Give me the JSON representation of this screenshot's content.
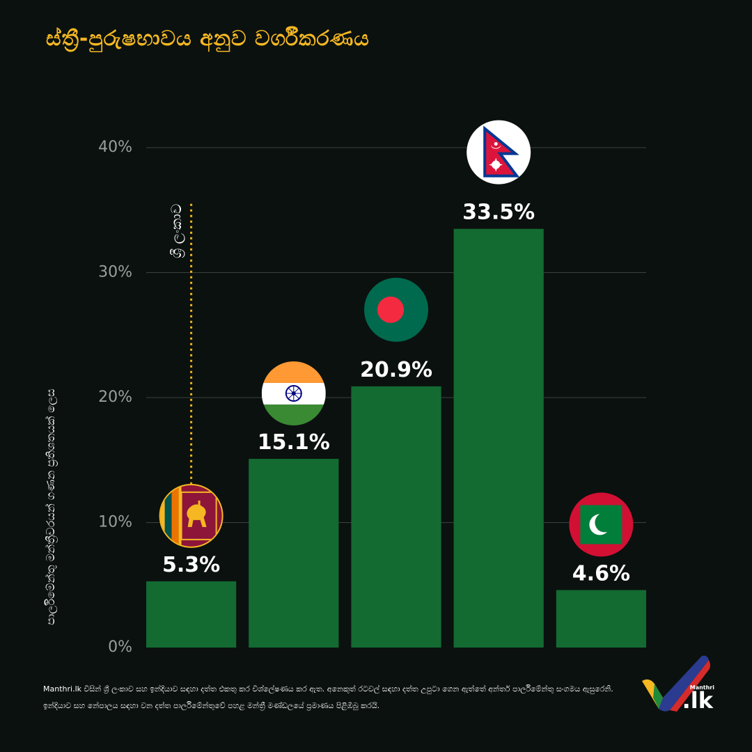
{
  "title": "ස්ත්‍රී-පුරුෂභාවය අනුව වර්ගීකරණය",
  "colors": {
    "background": "#0b110f",
    "title": "#f5b822",
    "bar": "#136b32",
    "grid": "#3a4240",
    "marker": "#f5b822",
    "tick": "#9aa09e"
  },
  "chart_data": {
    "type": "bar",
    "title": "ස්ත්‍රී-පුරුෂභාවය අනුව වර්ගීකරණය",
    "ylabel": "පාර්ලිමේන්තු මන්ත්‍රීවරයන් ගණන ප්‍රතිශතයක් ලෙස",
    "xlabel": "",
    "ylim": [
      0,
      40
    ],
    "yticks": [
      0,
      10,
      20,
      30,
      40
    ],
    "ytick_labels": [
      "0%",
      "10%",
      "20%",
      "30%",
      "40%"
    ],
    "grid": true,
    "legend": "none",
    "categories": [
      "Sri Lanka",
      "India",
      "Bangladesh",
      "Nepal",
      "Maldives"
    ],
    "values": [
      5.3,
      15.1,
      20.9,
      33.5,
      4.6
    ],
    "data_labels": [
      "5.3%",
      "15.1%",
      "20.9%",
      "33.5%",
      "4.6%"
    ],
    "flag_icons": [
      "sri-lanka-flag-icon",
      "india-flag-icon",
      "bangladesh-flag-icon",
      "nepal-flag-icon",
      "maldives-flag-icon"
    ],
    "annotation": {
      "text": "ශ්‍රී ලංකාව",
      "target_category": "Sri Lanka",
      "style": "dotted-vertical-line"
    }
  },
  "footer": "Manthri.lk විසින් ශ්‍රී ලංකාව සහ ඉන්දියාව සඳහා දත්ත එකතු කර විශ්ලේෂණය කර ඇත. අනෙකුත් රටවල් සඳහා දත්ත උපුටා ගෙන ඇත්තේ අන්තර් පාර්ලිමේන්තු සංගමය ඇසුරෙනි. ඉන්දියාව සහ නේපාලය සඳහා වන දත්ත පාර්ලිමේන්තුවේ පහළ මන්ත්‍රී මණ්ඩලයේ ප්‍රමාණය පිළිඹිබු කරයි.",
  "logo": {
    "sub": "Manthri",
    "main": ".lk",
    "icon": "manthri-check-logo-icon"
  }
}
